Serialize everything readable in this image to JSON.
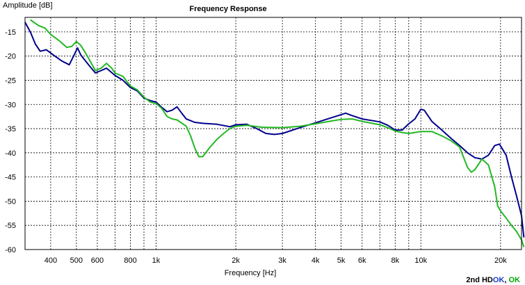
{
  "chart_data": {
    "type": "line",
    "title": "Frequency Response",
    "xlabel": "Frequency [Hz]",
    "ylabel": "Amplitude [dB]",
    "xscale": "log",
    "xlim": [
      320,
      24000
    ],
    "ylim": [
      -60,
      -12
    ],
    "grid": true,
    "x_ticks": [
      {
        "value": 400,
        "label": "400"
      },
      {
        "value": 500,
        "label": "500"
      },
      {
        "value": 600,
        "label": "600"
      },
      {
        "value": 800,
        "label": "800"
      },
      {
        "value": 1000,
        "label": "1k"
      },
      {
        "value": 2000,
        "label": "2k"
      },
      {
        "value": 3000,
        "label": "3k"
      },
      {
        "value": 4000,
        "label": "4k"
      },
      {
        "value": 5000,
        "label": "5k"
      },
      {
        "value": 6000,
        "label": "6k"
      },
      {
        "value": 8000,
        "label": "8k"
      },
      {
        "value": 10000,
        "label": "10k"
      },
      {
        "value": 20000,
        "label": "20k"
      }
    ],
    "x_grid": [
      400,
      500,
      600,
      700,
      800,
      900,
      1000,
      2000,
      3000,
      4000,
      5000,
      6000,
      7000,
      8000,
      9000,
      10000,
      20000
    ],
    "y_ticks": [
      -15,
      -20,
      -25,
      -30,
      -35,
      -40,
      -45,
      -50,
      -55,
      -60
    ],
    "series": [
      {
        "color": "#00008b",
        "points": [
          [
            320,
            -13
          ],
          [
            335,
            -15
          ],
          [
            350,
            -17.5
          ],
          [
            365,
            -19
          ],
          [
            385,
            -18.7
          ],
          [
            410,
            -19.8
          ],
          [
            440,
            -21
          ],
          [
            470,
            -21.8
          ],
          [
            490,
            -19.8
          ],
          [
            505,
            -18.3
          ],
          [
            520,
            -19.8
          ],
          [
            560,
            -22
          ],
          [
            590,
            -23.5
          ],
          [
            620,
            -23
          ],
          [
            650,
            -22.5
          ],
          [
            700,
            -24
          ],
          [
            750,
            -25
          ],
          [
            800,
            -26.5
          ],
          [
            850,
            -27.2
          ],
          [
            900,
            -28.7
          ],
          [
            950,
            -29.2
          ],
          [
            1000,
            -29.5
          ],
          [
            1050,
            -30.6
          ],
          [
            1100,
            -31.5
          ],
          [
            1150,
            -31.2
          ],
          [
            1200,
            -30.5
          ],
          [
            1250,
            -31.8
          ],
          [
            1300,
            -33
          ],
          [
            1400,
            -33.7
          ],
          [
            1500,
            -33.9
          ],
          [
            1700,
            -34.1
          ],
          [
            1900,
            -34.6
          ],
          [
            2000,
            -34.2
          ],
          [
            2200,
            -34.1
          ],
          [
            2400,
            -35
          ],
          [
            2600,
            -36
          ],
          [
            2800,
            -36.2
          ],
          [
            3000,
            -36
          ],
          [
            3500,
            -34.8
          ],
          [
            4000,
            -33.8
          ],
          [
            4500,
            -32.9
          ],
          [
            5000,
            -32.1
          ],
          [
            5200,
            -31.8
          ],
          [
            5500,
            -32.3
          ],
          [
            6000,
            -33
          ],
          [
            7000,
            -33.6
          ],
          [
            7500,
            -34.3
          ],
          [
            8000,
            -35.3
          ],
          [
            8500,
            -35.3
          ],
          [
            9000,
            -34
          ],
          [
            9500,
            -33
          ],
          [
            10000,
            -31
          ],
          [
            10300,
            -31.2
          ],
          [
            11000,
            -33.5
          ],
          [
            12000,
            -35.3
          ],
          [
            13000,
            -37
          ],
          [
            14000,
            -38.5
          ],
          [
            15000,
            -40
          ],
          [
            16000,
            -41
          ],
          [
            17000,
            -41.3
          ],
          [
            18000,
            -40.5
          ],
          [
            19000,
            -38.5
          ],
          [
            19800,
            -38.2
          ],
          [
            21000,
            -40.5
          ],
          [
            22000,
            -45
          ],
          [
            23000,
            -49
          ],
          [
            24000,
            -53
          ],
          [
            24500,
            -57.5
          ]
        ]
      },
      {
        "color": "#22b822",
        "points": [
          [
            335,
            -12.5
          ],
          [
            360,
            -13.7
          ],
          [
            380,
            -14.2
          ],
          [
            400,
            -15.5
          ],
          [
            430,
            -16.8
          ],
          [
            460,
            -18.2
          ],
          [
            480,
            -18
          ],
          [
            500,
            -17
          ],
          [
            520,
            -17.8
          ],
          [
            550,
            -20
          ],
          [
            590,
            -23
          ],
          [
            620,
            -22.5
          ],
          [
            650,
            -21.5
          ],
          [
            680,
            -22.5
          ],
          [
            700,
            -23.5
          ],
          [
            750,
            -24.2
          ],
          [
            800,
            -26.2
          ],
          [
            850,
            -27
          ],
          [
            900,
            -28.5
          ],
          [
            950,
            -29.5
          ],
          [
            1000,
            -29.8
          ],
          [
            1050,
            -30.8
          ],
          [
            1100,
            -32.5
          ],
          [
            1150,
            -33
          ],
          [
            1200,
            -33.2
          ],
          [
            1300,
            -34.5
          ],
          [
            1350,
            -36.5
          ],
          [
            1400,
            -39
          ],
          [
            1450,
            -40.8
          ],
          [
            1500,
            -40.8
          ],
          [
            1600,
            -38.8
          ],
          [
            1700,
            -37.2
          ],
          [
            1800,
            -36
          ],
          [
            1900,
            -35
          ],
          [
            2000,
            -34.5
          ],
          [
            2200,
            -34.3
          ],
          [
            2500,
            -34.7
          ],
          [
            3000,
            -34.8
          ],
          [
            3500,
            -34.5
          ],
          [
            4000,
            -34
          ],
          [
            4500,
            -33.5
          ],
          [
            5000,
            -33.1
          ],
          [
            5500,
            -33
          ],
          [
            6000,
            -33.5
          ],
          [
            7000,
            -34.2
          ],
          [
            7500,
            -34.8
          ],
          [
            8000,
            -35.5
          ],
          [
            8500,
            -35.8
          ],
          [
            9000,
            -36
          ],
          [
            9500,
            -35.8
          ],
          [
            10000,
            -35.6
          ],
          [
            11000,
            -35.6
          ],
          [
            12000,
            -36.5
          ],
          [
            13000,
            -37.5
          ],
          [
            14000,
            -38.8
          ],
          [
            15000,
            -43
          ],
          [
            15500,
            -44
          ],
          [
            16000,
            -43.5
          ],
          [
            17000,
            -41.3
          ],
          [
            18000,
            -42.5
          ],
          [
            19000,
            -47
          ],
          [
            19500,
            -51
          ],
          [
            20000,
            -52
          ],
          [
            21000,
            -53.5
          ],
          [
            22000,
            -55
          ],
          [
            23000,
            -56.3
          ],
          [
            24000,
            -58
          ],
          [
            24500,
            -59.5
          ]
        ]
      }
    ]
  },
  "status": {
    "prefix": "2nd HD",
    "ok1": "OK",
    "separator": ", ",
    "ok2": "OK"
  }
}
